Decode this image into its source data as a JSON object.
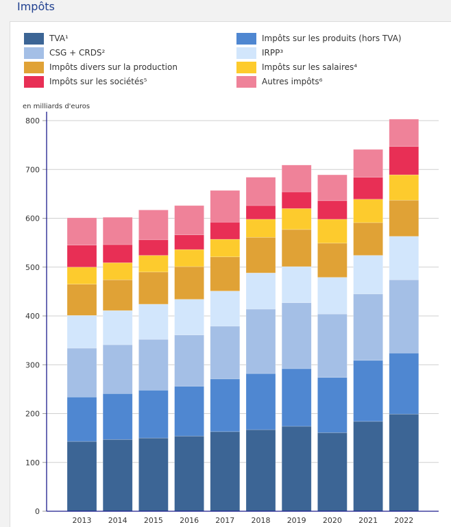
{
  "title": "Impôts",
  "chart_data": {
    "type": "bar",
    "stacked": true,
    "title": "Impôts",
    "ylabel": "en milliards d'euros",
    "xlabel": "",
    "ylim": [
      0,
      800
    ],
    "yticks": [
      0,
      100,
      200,
      300,
      400,
      500,
      600,
      700,
      800
    ],
    "grid": true,
    "legend_position": "top",
    "categories": [
      "2013",
      "2014",
      "2015",
      "2016",
      "2017",
      "2018",
      "2019",
      "2020",
      "2021",
      "2022"
    ],
    "series": [
      {
        "name": "TVA¹",
        "color": "#3c6595",
        "values": [
          143,
          147,
          150,
          154,
          163,
          167,
          174,
          161,
          184,
          199
        ]
      },
      {
        "name": "Impôts sur les produits (hors TVA)",
        "color": "#4f87d1",
        "values": [
          91,
          94,
          98,
          102,
          108,
          115,
          118,
          113,
          125,
          125
        ]
      },
      {
        "name": "CSG + CRDS²",
        "color": "#a4bfe6",
        "values": [
          100,
          100,
          104,
          105,
          108,
          132,
          135,
          130,
          136,
          150
        ]
      },
      {
        "name": "IRPP³",
        "color": "#d2e6fc",
        "values": [
          67,
          70,
          72,
          73,
          72,
          74,
          74,
          75,
          79,
          89
        ]
      },
      {
        "name": "Impôts divers sur la production",
        "color": "#e0a236",
        "values": [
          64,
          63,
          66,
          67,
          70,
          73,
          76,
          70,
          67,
          74
        ]
      },
      {
        "name": "Impôts sur les salaires⁴",
        "color": "#fdcb2d",
        "values": [
          35,
          35,
          34,
          35,
          36,
          37,
          43,
          49,
          48,
          52
        ]
      },
      {
        "name": "Impôts sur les sociétés⁵",
        "color": "#e82f55",
        "values": [
          45,
          37,
          32,
          30,
          35,
          28,
          34,
          38,
          45,
          58
        ]
      },
      {
        "name": "Autres impôts⁶",
        "color": "#ef8299",
        "values": [
          56,
          56,
          61,
          60,
          65,
          58,
          55,
          53,
          57,
          56
        ]
      }
    ]
  },
  "legend_order": [
    0,
    1,
    2,
    3,
    4,
    5,
    6,
    7
  ],
  "legend_layout": [
    {
      "series": 0,
      "col": 0,
      "row": 0
    },
    {
      "series": 1,
      "col": 1,
      "row": 0
    },
    {
      "series": 2,
      "col": 0,
      "row": 1
    },
    {
      "series": 3,
      "col": 1,
      "row": 1
    },
    {
      "series": 4,
      "col": 0,
      "row": 2
    },
    {
      "series": 5,
      "col": 1,
      "row": 2
    },
    {
      "series": 6,
      "col": 0,
      "row": 3
    },
    {
      "series": 7,
      "col": 1,
      "row": 3
    }
  ]
}
